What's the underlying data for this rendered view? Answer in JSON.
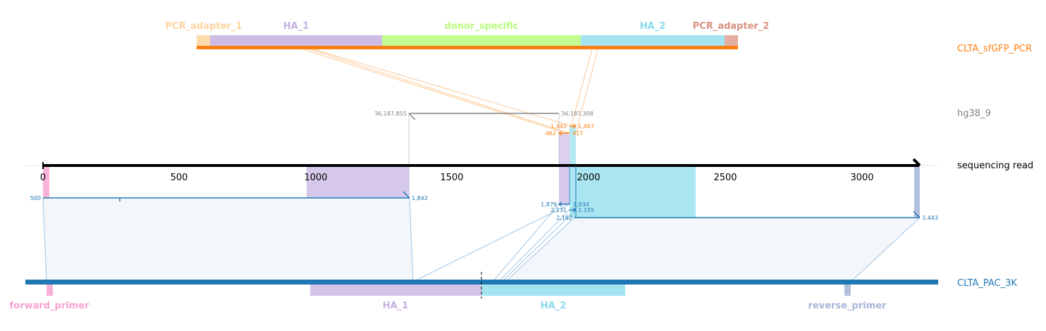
{
  "tracks": {
    "construct": {
      "name": "CLTA_sfGFP_PCR",
      "color": "#ff7f0e"
    },
    "genome": {
      "name": "hg38_9",
      "color": "#808080"
    },
    "read": {
      "name": "sequencing read",
      "color": "#000000"
    },
    "reference": {
      "name": "CLTA_PAC_3K",
      "color": "#1f77b4"
    }
  },
  "construct_features": [
    {
      "name": "PCR_adapter_1",
      "color": "#fdd49e"
    },
    {
      "name": "HA_1",
      "color": "#c5b0e2"
    },
    {
      "name": "donor_specific",
      "color": "#b8fc7c"
    },
    {
      "name": "HA_2",
      "color": "#86dbeb"
    },
    {
      "name": "PCR_adapter_2",
      "color": "#d99182"
    }
  ],
  "reference_features": [
    {
      "name": "forward_primer",
      "color": "#f7a1d1"
    },
    {
      "name": "HA_1",
      "color": "#c5b0e2"
    },
    {
      "name": "HA_2",
      "color": "#86dbeb"
    },
    {
      "name": "reverse_primer",
      "color": "#a6b5d6"
    }
  ],
  "read_axis": {
    "ticks": [
      "0",
      "500",
      "1000",
      "1500",
      "2000",
      "2500",
      "3000"
    ]
  },
  "genome_alignment": {
    "start": "36,187,855",
    "end": "36,187,308"
  },
  "construct_alignments": [
    {
      "left": "1,443",
      "right": "1,467"
    },
    {
      "left": "462",
      "right": "417"
    }
  ],
  "reference_alignments": [
    {
      "left": "500",
      "right": "1,842"
    },
    {
      "left": "1,879",
      "right": "1,834"
    },
    {
      "left": "2,131",
      "right": "2,155"
    },
    {
      "left": "2,182",
      "right": "3,443"
    }
  ]
}
